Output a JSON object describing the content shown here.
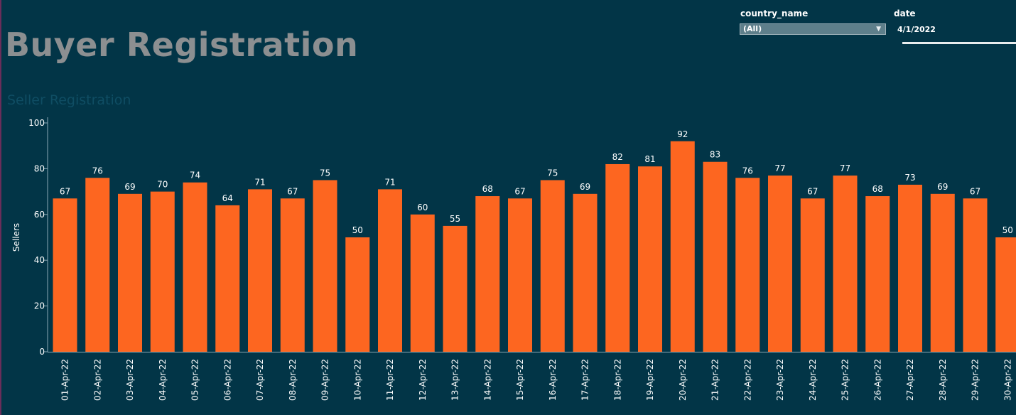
{
  "header": {
    "title": "Buyer Registration"
  },
  "filters": {
    "country": {
      "label": "country_name",
      "value": "(All)"
    },
    "date": {
      "label": "date",
      "value": "4/1/2022"
    }
  },
  "colors": {
    "background": "#023547",
    "bar": "#fd6620",
    "text": "#ffffff",
    "title": "#8c8f91",
    "subtitle": "#0f4d63"
  },
  "chart_data": {
    "type": "bar",
    "title": "Seller Registration",
    "xlabel": "",
    "ylabel": "Sellers",
    "ylim": [
      0,
      100
    ],
    "yticks": [
      0,
      20,
      40,
      60,
      80,
      100
    ],
    "grid": false,
    "data_labels": true,
    "categories": [
      "01-Apr-22",
      "02-Apr-22",
      "03-Apr-22",
      "04-Apr-22",
      "05-Apr-22",
      "06-Apr-22",
      "07-Apr-22",
      "08-Apr-22",
      "09-Apr-22",
      "10-Apr-22",
      "11-Apr-22",
      "12-Apr-22",
      "13-Apr-22",
      "14-Apr-22",
      "15-Apr-22",
      "16-Apr-22",
      "17-Apr-22",
      "18-Apr-22",
      "19-Apr-22",
      "20-Apr-22",
      "21-Apr-22",
      "22-Apr-22",
      "23-Apr-22",
      "24-Apr-22",
      "25-Apr-22",
      "26-Apr-22",
      "27-Apr-22",
      "28-Apr-22",
      "29-Apr-22",
      "30-Apr-22"
    ],
    "series": [
      {
        "name": "Sellers",
        "values": [
          67,
          76,
          69,
          70,
          74,
          64,
          71,
          67,
          75,
          50,
          71,
          60,
          55,
          68,
          67,
          75,
          69,
          82,
          81,
          92,
          83,
          76,
          77,
          67,
          77,
          68,
          73,
          69,
          67,
          50
        ]
      }
    ]
  }
}
